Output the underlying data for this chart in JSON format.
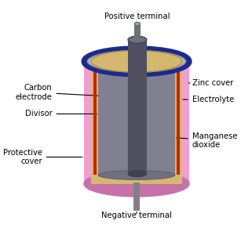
{
  "bg_color": "#ffffff",
  "labels": {
    "positive_terminal": "Positive terminal",
    "negative_terminal": "Negative terminal",
    "carbon_electrode": "Carbon\nelectrode",
    "zinc_cover": "Zinc cover",
    "electrolyte": "Electrolyte",
    "divisor": "Divisor",
    "manganese_dioxide": "Manganese\ndioxide",
    "protective_cover": "Protective\ncover"
  },
  "colors": {
    "outer_pink": "#f0a0d0",
    "outer_pink_dark": "#c870a8",
    "zinc_gold": "#d4b870",
    "zinc_gold_dark": "#b09040",
    "red_strip": "#cc2200",
    "mno2_gray": "#808090",
    "mno2_gray_dark": "#606070",
    "carbon_dark": "#505060",
    "carbon_mid": "#707080",
    "carbon_bot": "#404050",
    "top_cap_gray": "#b8b8b8",
    "top_rim_blue": "#1a2a90",
    "pin_gray": "#707078",
    "pin_top": "#a0a0a8",
    "neg_gray": "#808088",
    "line_color": "#000000",
    "text_color": "#000000"
  }
}
